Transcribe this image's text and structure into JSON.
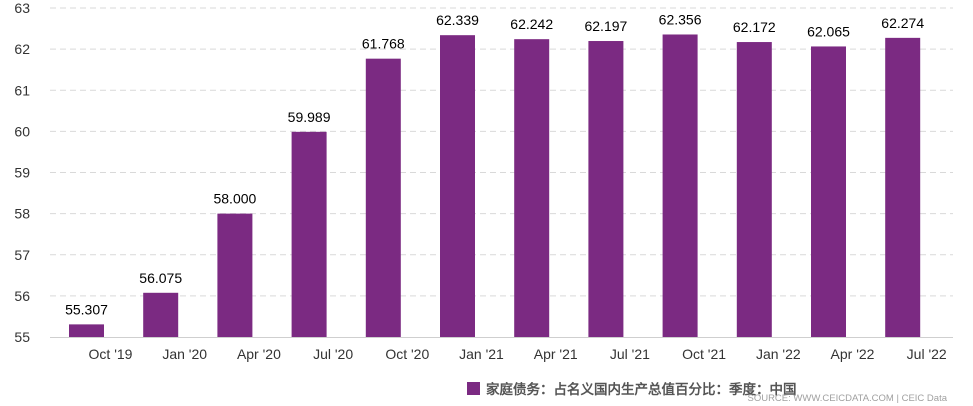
{
  "chart_data": {
    "type": "bar",
    "categories": [
      "Oct '19",
      "Jan '20",
      "Apr '20",
      "Jul '20",
      "Oct '20",
      "Jan '21",
      "Apr '21",
      "Jul '21",
      "Oct '21",
      "Jan '22",
      "Apr '22",
      "Jul '22"
    ],
    "series": [
      {
        "name": "家庭债务：占名义国内生产总值百分比：季度：中国",
        "values": [
          55.307,
          56.075,
          58.0,
          59.989,
          61.768,
          62.339,
          62.242,
          62.197,
          62.356,
          62.172,
          62.065,
          62.274
        ],
        "labels": [
          "55.307",
          "56.075",
          "58.000",
          "59.989",
          "61.768",
          "62.339",
          "62.242",
          "62.197",
          "62.356",
          "62.172",
          "62.065",
          "62.274"
        ],
        "color": "#7b2a82"
      }
    ],
    "ylim": [
      55,
      63
    ],
    "yticks": [
      "55",
      "56",
      "57",
      "58",
      "59",
      "60",
      "61",
      "62",
      "63"
    ],
    "grid": true,
    "legend_position": "bottom"
  },
  "source": "SOURCE: WWW.CEICDATA.COM | CEIC Data"
}
